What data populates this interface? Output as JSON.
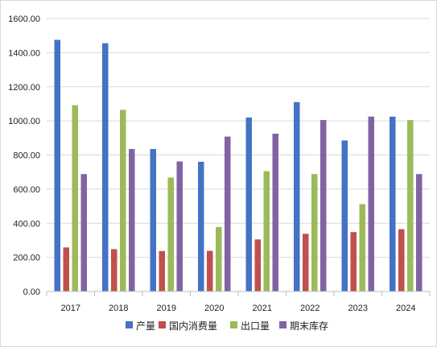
{
  "chart_data": {
    "type": "bar",
    "title": "",
    "xlabel": "",
    "ylabel": "",
    "ylim": [
      0,
      1600
    ],
    "yticks": [
      "0.00",
      "200.00",
      "400.00",
      "600.00",
      "800.00",
      "1000.00",
      "1200.00",
      "1400.00",
      "1600.00"
    ],
    "ytick_values": [
      0,
      200,
      400,
      600,
      800,
      1000,
      1200,
      1400,
      1600
    ],
    "grid": true,
    "legend_position": "bottom",
    "categories": [
      "2017",
      "2018",
      "2019",
      "2020",
      "2021",
      "2022",
      "2023",
      "2024"
    ],
    "series": [
      {
        "name": "产量",
        "color": "#4472C4",
        "values": [
          1475,
          1455,
          835,
          760,
          1020,
          1110,
          885,
          1025
        ]
      },
      {
        "name": "国内消费量",
        "color": "#C0504D",
        "values": [
          258,
          248,
          237,
          238,
          305,
          338,
          348,
          365
        ]
      },
      {
        "name": "出口量",
        "color": "#9BBB59",
        "values": [
          1092,
          1065,
          668,
          378,
          705,
          688,
          512,
          1005
        ]
      },
      {
        "name": "期末库存",
        "color": "#8064A2",
        "values": [
          688,
          835,
          762,
          908,
          925,
          1005,
          1025,
          688
        ]
      }
    ]
  }
}
